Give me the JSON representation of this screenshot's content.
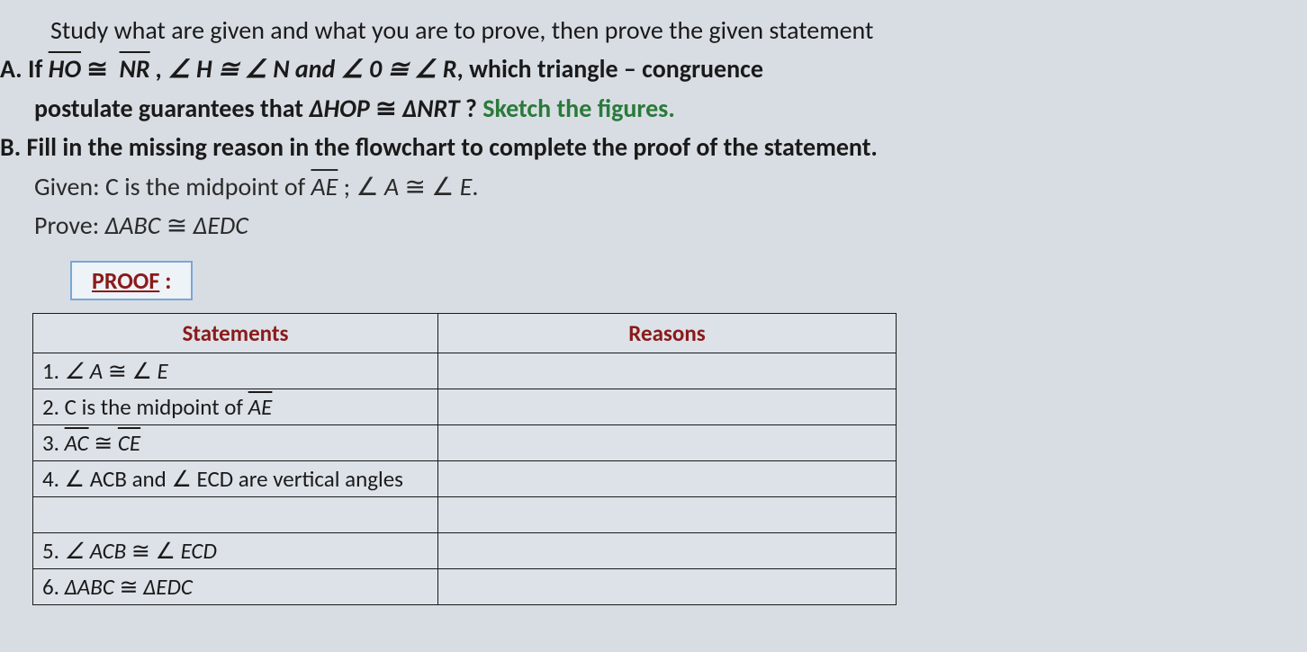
{
  "intro": "Study what are given and what you are to prove, then prove the given statement",
  "A": {
    "label": "A.",
    "prefix": "If ",
    "seg1": "HO",
    "cong": " ≅ ",
    "seg2": "NR",
    "mid1": " , ∠ ",
    "H": "H",
    "mid2": " ≅  ∠ ",
    "N": "N",
    "and": " and ",
    "ang0": "∠ 0",
    "mid3": "  ≅  ∠ ",
    "R": "R",
    "tail": ", which triangle – congruence",
    "line2a": "postulate guarantees that  ",
    "tri1": "ΔHOP",
    "cong2": "  ≅  ",
    "tri2": "ΔNRT",
    "q": " ? ",
    "sketch": "Sketch the figures."
  },
  "B": {
    "label": "B.",
    "text": "Fill in the missing reason in the flowchart to complete the proof of the statement.",
    "given_label": "Given: ",
    "given_a": "C is the midpoint of ",
    "given_seg": "AE",
    "given_b": " ;  ∠ ",
    "given_A": "A",
    "given_c": "  ≅  ∠ ",
    "given_E": "E",
    "given_d": ".",
    "prove_label": "Prove: ",
    "prove_a": "ΔABC",
    "prove_b": "  ≅  ",
    "prove_c": "ΔEDC"
  },
  "proof_label_u": "PROOF",
  "proof_label_rest": " :",
  "table": {
    "head_statements": "Statements",
    "head_reasons": "Reasons",
    "rows": {
      "r1": {
        "n": "1. ",
        "a": "∠ ",
        "b": "A",
        "c": "  ≅  ∠ ",
        "d": "E"
      },
      "r2": {
        "n": "2. ",
        "a": "C is the midpoint of ",
        "seg": "AE"
      },
      "r3": {
        "n": "3.  ",
        "seg1": "AC",
        "c": "  ≅  ",
        "seg2": "CE"
      },
      "r4": {
        "n": "4. ",
        "a": "∠ ACB and ∠ ECD are vertical ",
        "b": "angles"
      },
      "r5": {
        "n": "5. ",
        "a": "∠ ",
        "b": "ACB",
        "c": "  ≅  ∠ ",
        "d": "ECD"
      },
      "r6": {
        "n": "6. ",
        "a": "ΔABC",
        "c": "  ≅  ",
        "d": "ΔEDC"
      }
    }
  }
}
